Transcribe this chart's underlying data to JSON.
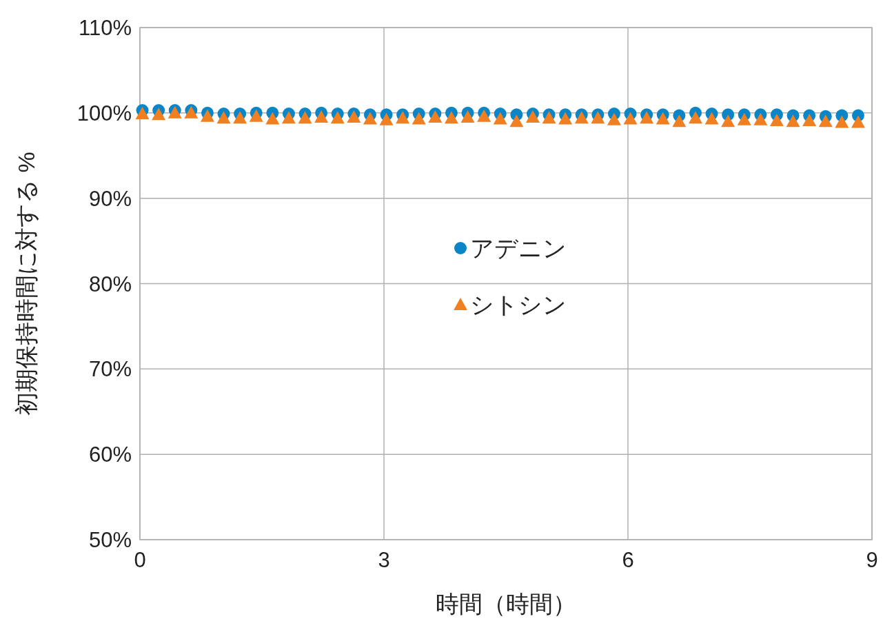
{
  "chart_data": {
    "type": "scatter",
    "xlabel": "時間（時間）",
    "ylabel": "初期保持時間に対する %",
    "x": [
      0.03,
      0.23,
      0.43,
      0.63,
      0.83,
      1.03,
      1.23,
      1.43,
      1.63,
      1.83,
      2.03,
      2.23,
      2.43,
      2.63,
      2.83,
      3.03,
      3.23,
      3.43,
      3.63,
      3.83,
      4.03,
      4.23,
      4.43,
      4.63,
      4.83,
      5.03,
      5.23,
      5.43,
      5.63,
      5.83,
      6.03,
      6.23,
      6.43,
      6.63,
      6.83,
      7.03,
      7.23,
      7.43,
      7.63,
      7.83,
      8.03,
      8.23,
      8.43,
      8.63,
      8.83
    ],
    "series": [
      {
        "name": "アデニン",
        "color": "#0a86c8",
        "marker": "circle",
        "values": [
          100.3,
          100.3,
          100.3,
          100.3,
          100.0,
          99.9,
          99.9,
          100.0,
          100.0,
          99.9,
          99.9,
          100.0,
          99.9,
          99.9,
          99.8,
          99.8,
          99.8,
          99.9,
          99.9,
          100.0,
          100.0,
          100.0,
          99.9,
          99.8,
          99.9,
          99.8,
          99.8,
          99.8,
          99.8,
          99.9,
          99.9,
          99.8,
          99.8,
          99.7,
          100.0,
          99.9,
          99.8,
          99.8,
          99.8,
          99.8,
          99.7,
          99.7,
          99.6,
          99.7,
          99.7
        ]
      },
      {
        "name": "シトシン",
        "color": "#f07f22",
        "marker": "triangle",
        "values": [
          99.9,
          99.8,
          100.0,
          100.0,
          99.6,
          99.4,
          99.4,
          99.6,
          99.3,
          99.4,
          99.4,
          99.5,
          99.4,
          99.5,
          99.3,
          99.2,
          99.4,
          99.3,
          99.5,
          99.4,
          99.5,
          99.6,
          99.3,
          99.0,
          99.5,
          99.4,
          99.3,
          99.4,
          99.4,
          99.2,
          99.3,
          99.4,
          99.3,
          99.0,
          99.4,
          99.3,
          99.0,
          99.2,
          99.2,
          99.1,
          99.0,
          99.1,
          99.0,
          98.9,
          98.9
        ]
      }
    ],
    "xlim": [
      0,
      9
    ],
    "xticks": [
      0,
      3,
      6,
      9
    ],
    "ylim": [
      50,
      110
    ],
    "yticks": [
      {
        "value": 50,
        "label": "50%"
      },
      {
        "value": 60,
        "label": "60%"
      },
      {
        "value": 70,
        "label": "70%"
      },
      {
        "value": 80,
        "label": "80%"
      },
      {
        "value": 90,
        "label": "90%"
      },
      {
        "value": 100,
        "label": "100%"
      },
      {
        "value": 110,
        "label": "110%"
      }
    ],
    "grid": true,
    "legend": "center"
  }
}
